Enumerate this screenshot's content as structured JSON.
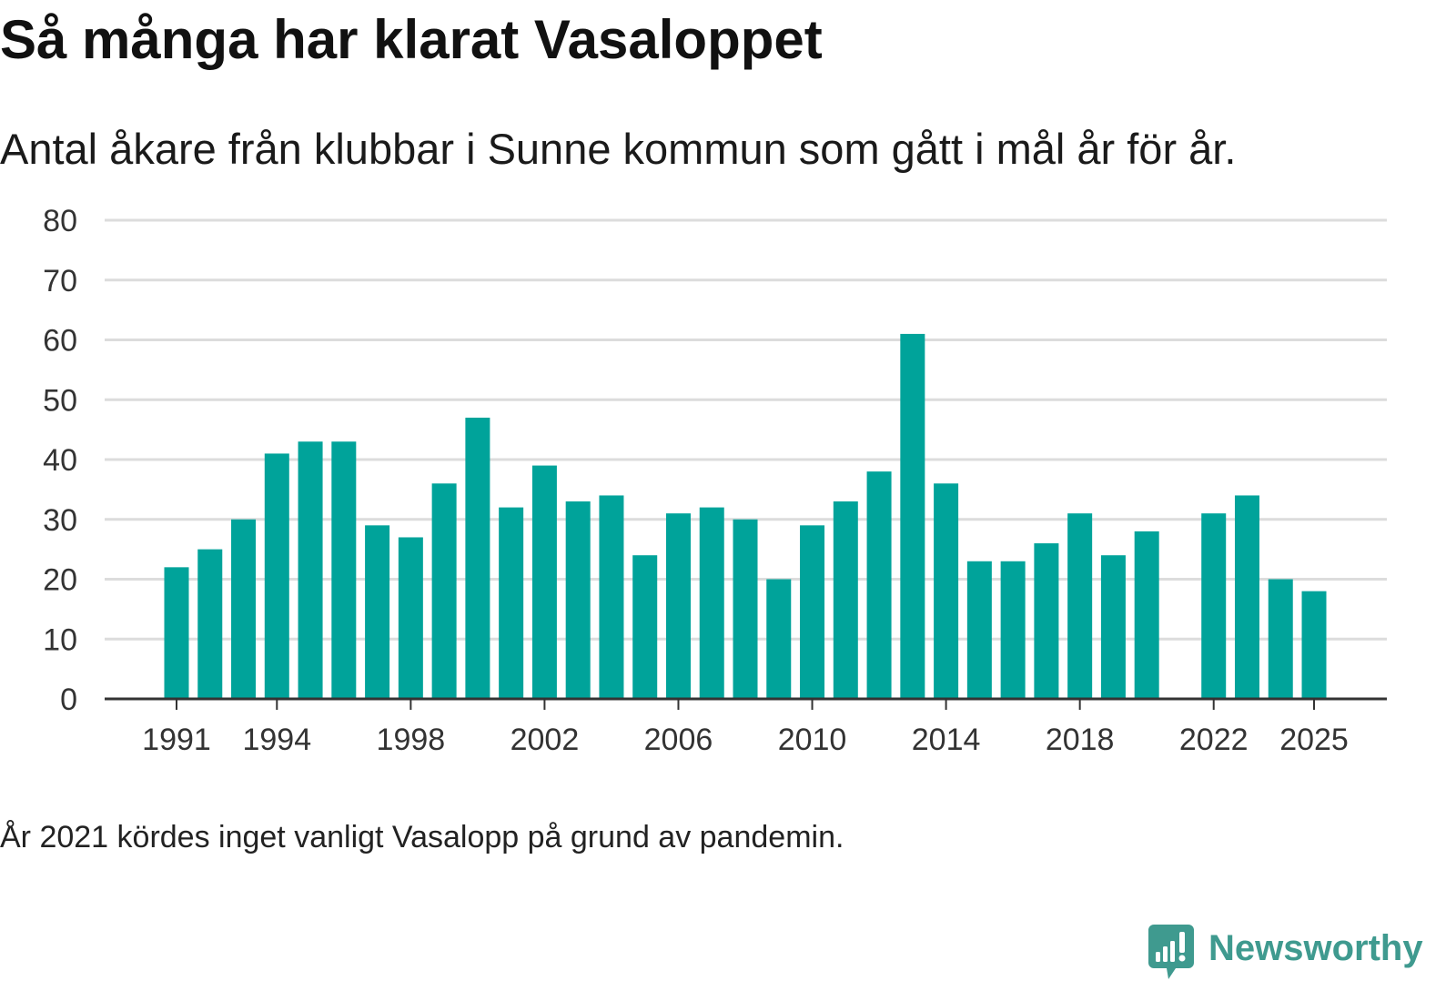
{
  "chart_data": {
    "type": "bar",
    "title": "Så många har klarat Vasaloppet",
    "subtitle": "Antal åkare från klubbar i Sunne kommun som gått i mål år för år.",
    "note": "År 2021 kördes inget vanligt Vasalopp på grund av pandemin.",
    "xlabel": "",
    "ylabel": "",
    "years": [
      1991,
      1992,
      1993,
      1994,
      1995,
      1996,
      1997,
      1998,
      1999,
      2000,
      2001,
      2002,
      2003,
      2004,
      2005,
      2006,
      2007,
      2008,
      2009,
      2010,
      2011,
      2012,
      2013,
      2014,
      2015,
      2016,
      2017,
      2018,
      2019,
      2020,
      2021,
      2022,
      2023,
      2024,
      2025
    ],
    "values": [
      22,
      25,
      30,
      41,
      43,
      43,
      29,
      27,
      36,
      47,
      32,
      39,
      33,
      34,
      24,
      31,
      32,
      30,
      20,
      29,
      33,
      38,
      61,
      36,
      23,
      23,
      26,
      31,
      24,
      28,
      null,
      31,
      34,
      20,
      18
    ],
    "x_ticks": [
      1991,
      1994,
      1998,
      2002,
      2006,
      2010,
      2014,
      2018,
      2022,
      2025
    ],
    "y_ticks": [
      0,
      10,
      20,
      30,
      40,
      50,
      60,
      70,
      80
    ],
    "ylim": [
      0,
      80
    ],
    "grid": true,
    "color": "#00a39a"
  },
  "brand": {
    "name": "Newsworthy",
    "icon": "newsworthy-logo-icon",
    "color": "#3f9a8f"
  }
}
